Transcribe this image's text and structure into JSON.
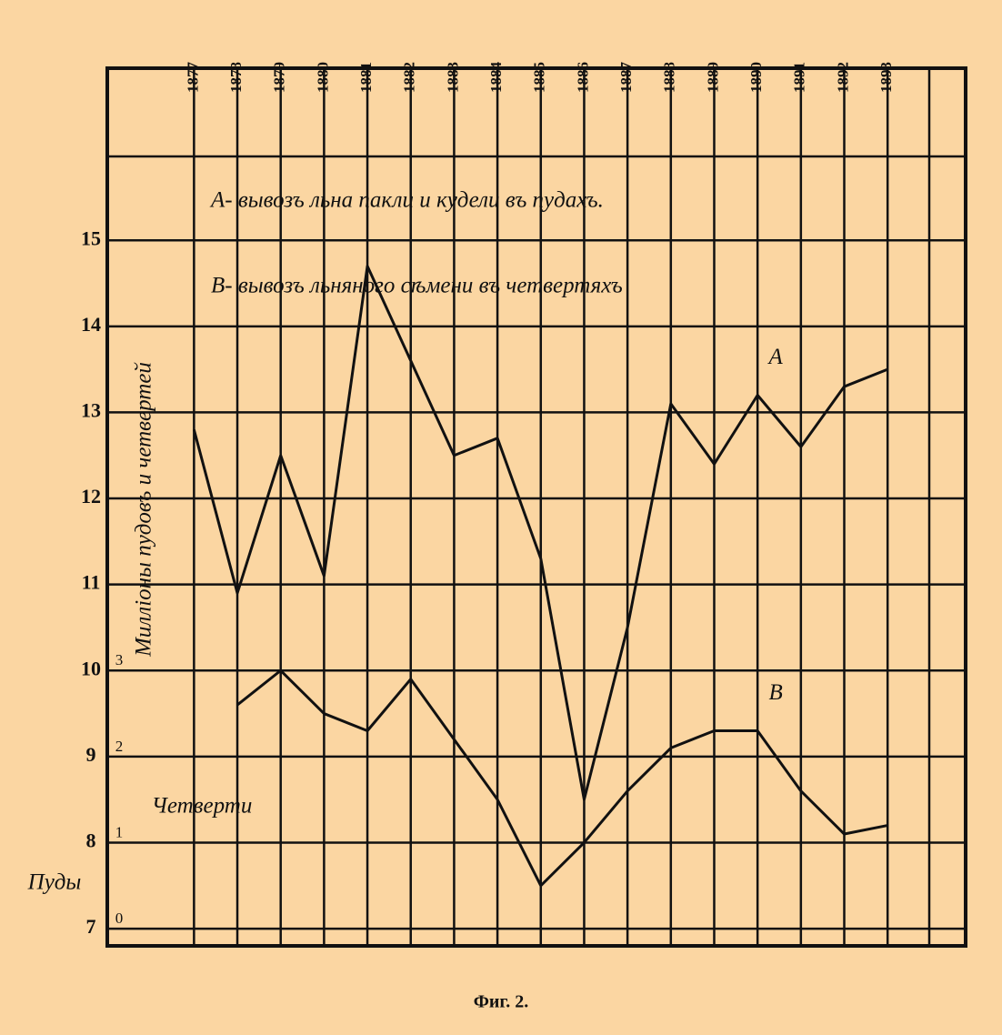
{
  "chart_data": {
    "type": "line",
    "ylabel": "Милліоны пудовъ и четвертей",
    "y_unit_label": "Пуды",
    "y2_unit_label": "Четверти",
    "legend": [
      "A- вывозъ льна пакли и кудели въ пудахъ.",
      "B- вывозъ льняного сѣмени въ четвертяхъ"
    ],
    "caption": "Фиг. 2.",
    "x": [
      1877,
      1878,
      1879,
      1880,
      1881,
      1882,
      1883,
      1884,
      1885,
      1886,
      1887,
      1888,
      1889,
      1890,
      1891,
      1892,
      1893
    ],
    "xlim": [
      1875,
      1894.8
    ],
    "xticks": [
      1877,
      1878,
      1879,
      1880,
      1881,
      1882,
      1883,
      1884,
      1885,
      1886,
      1887,
      1888,
      1889,
      1890,
      1891,
      1892,
      1893
    ],
    "ylim": [
      6.8,
      17.0
    ],
    "yticks": [
      7,
      8,
      9,
      10,
      11,
      12,
      13,
      14,
      15
    ],
    "y2lim": [
      -0.2,
      10.0
    ],
    "y2ticks": [
      0,
      1,
      2,
      3
    ],
    "grid": true,
    "series": [
      {
        "name": "A",
        "color": "#111111",
        "values": [
          12.8,
          10.9,
          12.5,
          11.1,
          14.7,
          13.6,
          12.5,
          12.7,
          11.3,
          8.5,
          10.5,
          13.1,
          12.4,
          13.2,
          12.6,
          13.3,
          13.5
        ]
      },
      {
        "name": "B",
        "color": "#111111",
        "axis": "y2",
        "values": [
          null,
          2.6,
          3.0,
          2.5,
          2.3,
          2.9,
          2.2,
          1.5,
          0.5,
          1.0,
          1.6,
          2.1,
          2.3,
          2.3,
          1.6,
          1.1,
          1.2
        ]
      }
    ]
  }
}
